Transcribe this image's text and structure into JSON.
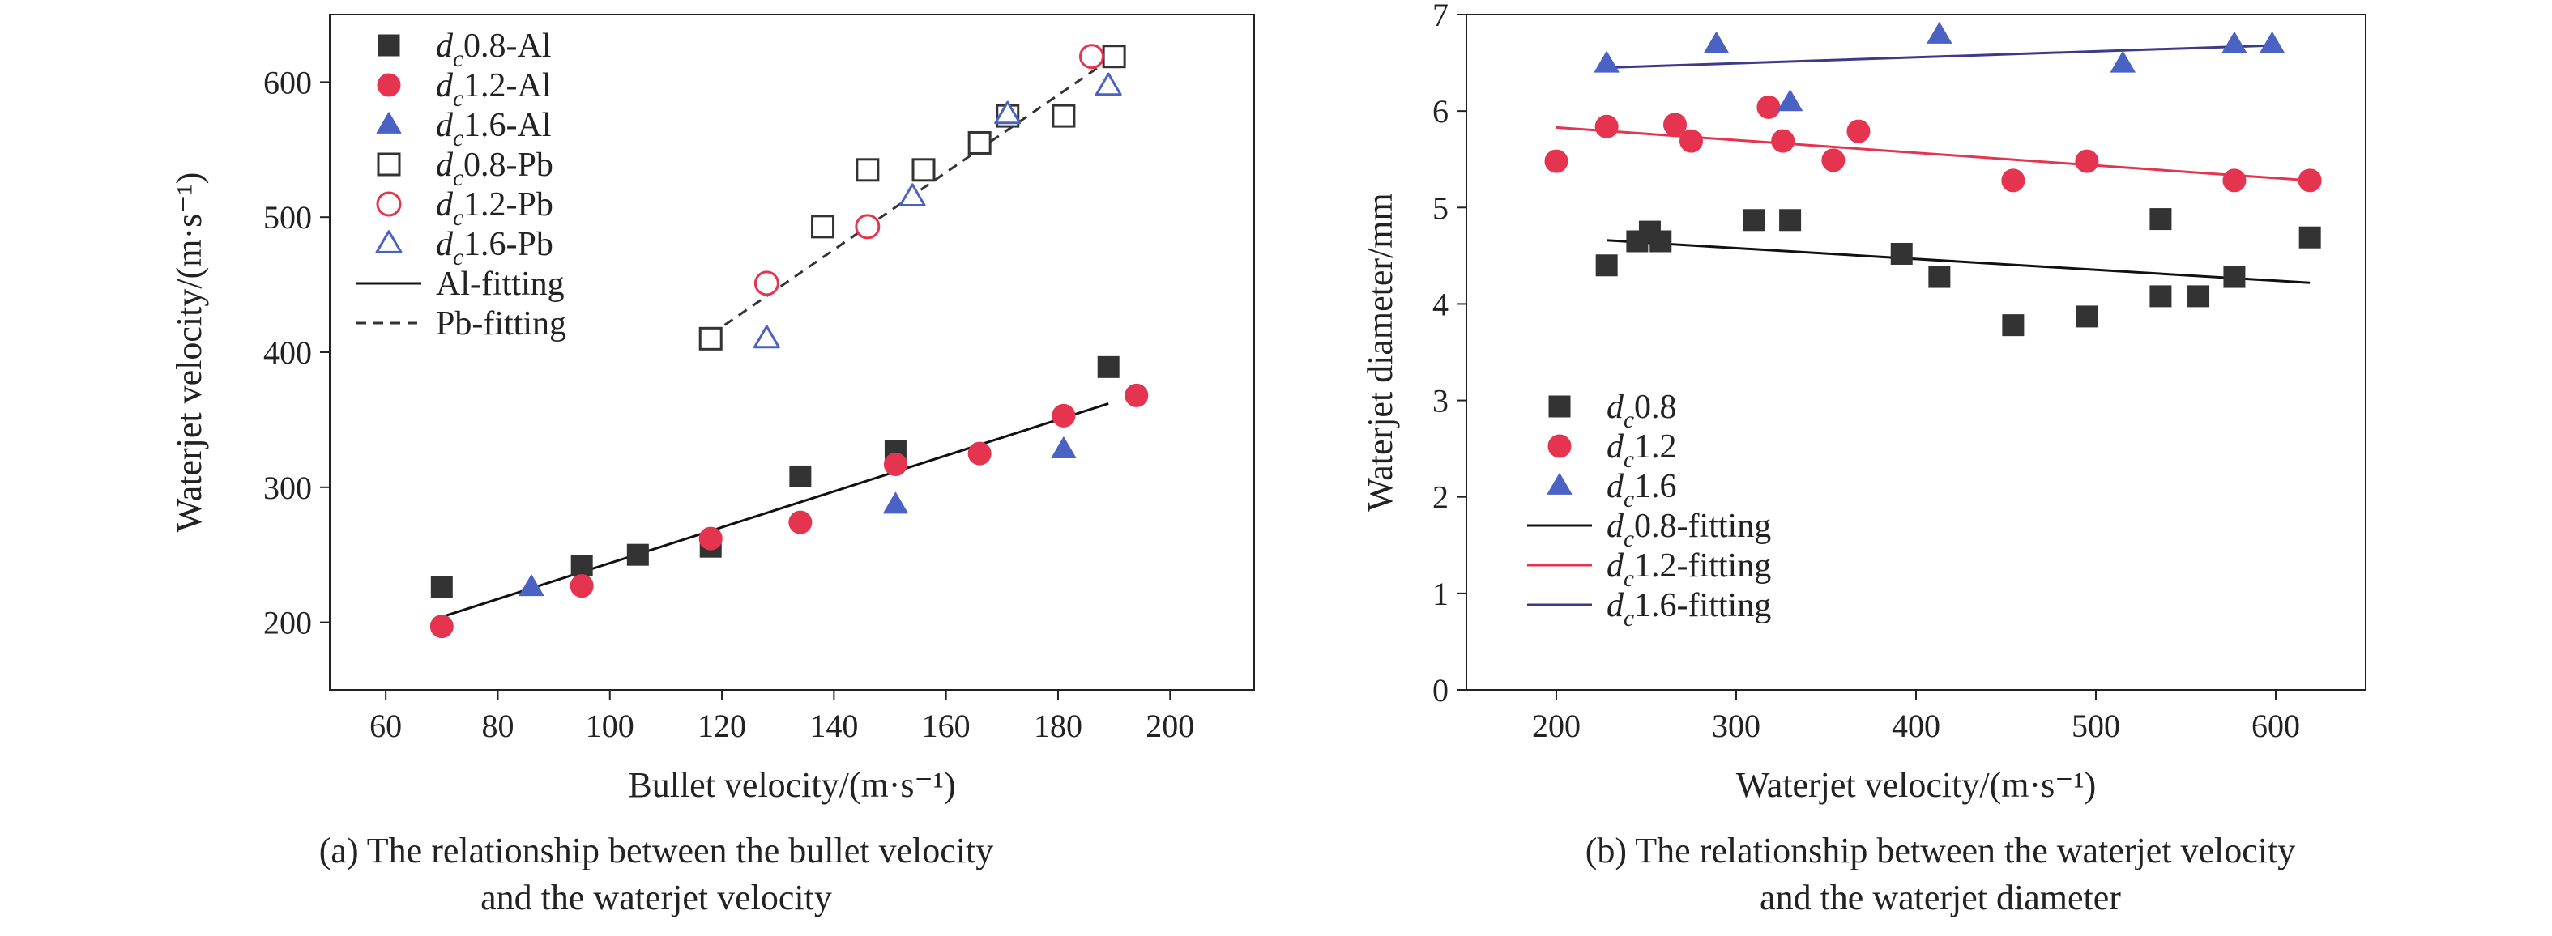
{
  "chart_data": [
    {
      "type": "scatter",
      "caption": [
        "(a) The relationship between the bullet velocity",
        "and the waterjet velocity"
      ],
      "xlabel": "Bullet velocity/(m·s⁻¹)",
      "ylabel": "Waterjet velocity/(m·s⁻¹)",
      "xlim": [
        50,
        215
      ],
      "ylim": [
        150,
        650
      ],
      "xticks": [
        60,
        80,
        100,
        120,
        140,
        160,
        180,
        200
      ],
      "yticks": [
        200,
        300,
        400,
        500,
        600
      ],
      "legend_position": "top-left",
      "series": [
        {
          "name": "dc0.8-Al",
          "sub": "c",
          "base": "d",
          "suffix": "0.8-Al",
          "marker": "square",
          "filled": true,
          "color": "#333333",
          "points": [
            [
              70,
              226
            ],
            [
              95,
              242
            ],
            [
              105,
              250
            ],
            [
              118,
              256
            ],
            [
              134,
              308
            ],
            [
              151,
              327
            ],
            [
              189,
              389
            ]
          ]
        },
        {
          "name": "dc1.2-Al",
          "sub": "c",
          "base": "d",
          "suffix": "1.2-Al",
          "marker": "circle",
          "filled": true,
          "color": "#e5344f",
          "points": [
            [
              70,
              197
            ],
            [
              95,
              227
            ],
            [
              118,
              262
            ],
            [
              134,
              274
            ],
            [
              151,
              317
            ],
            [
              166,
              325
            ],
            [
              181,
              353
            ],
            [
              194,
              368
            ]
          ]
        },
        {
          "name": "dc1.6-Al",
          "sub": "c",
          "base": "d",
          "suffix": "1.6-Al",
          "marker": "triangle",
          "filled": true,
          "color": "#4a62c4",
          "points": [
            [
              86,
              226
            ],
            [
              151,
              287
            ],
            [
              181,
              328
            ]
          ]
        },
        {
          "name": "dc0.8-Pb",
          "sub": "c",
          "base": "d",
          "suffix": "0.8-Pb",
          "marker": "square",
          "filled": false,
          "color": "#333333",
          "points": [
            [
              118,
              410
            ],
            [
              138,
              493
            ],
            [
              146,
              535
            ],
            [
              156,
              535
            ],
            [
              166,
              555
            ],
            [
              171,
              575
            ],
            [
              181,
              575
            ],
            [
              190,
              619
            ]
          ]
        },
        {
          "name": "dc1.2-Pb",
          "sub": "c",
          "base": "d",
          "suffix": "1.2-Pb",
          "marker": "circle",
          "filled": false,
          "color": "#e5344f",
          "points": [
            [
              128,
              451
            ],
            [
              146,
              493
            ],
            [
              186,
              619
            ]
          ]
        },
        {
          "name": "dc1.6-Pb",
          "sub": "c",
          "base": "d",
          "suffix": "1.6-Pb",
          "marker": "triangle",
          "filled": false,
          "color": "#4a62c4",
          "points": [
            [
              128,
              410
            ],
            [
              154,
              515
            ],
            [
              171,
              576
            ],
            [
              189,
              597
            ]
          ]
        }
      ],
      "fits": [
        {
          "name": "Al-fitting",
          "style": "solid",
          "color": "#111111",
          "from": [
            70,
            204
          ],
          "to": [
            189,
            362
          ]
        },
        {
          "name": "Pb-fitting",
          "style": "dashed",
          "color": "#333333",
          "from": [
            118,
            413
          ],
          "to": [
            190,
            619
          ]
        }
      ]
    },
    {
      "type": "scatter",
      "caption": [
        "(b) The relationship between the waterjet velocity",
        "and the waterjet diameter"
      ],
      "xlabel": "Waterjet velocity/(m·s⁻¹)",
      "ylabel": "Waterjet diameter/mm",
      "xlim": [
        150,
        650
      ],
      "ylim": [
        0,
        7
      ],
      "xticks": [
        200,
        300,
        400,
        500,
        600
      ],
      "yticks": [
        0,
        1,
        2,
        3,
        4,
        5,
        6,
        7
      ],
      "legend_position": "bottom-left",
      "series": [
        {
          "name": "dc0.8",
          "sub": "c",
          "base": "d",
          "suffix": "0.8",
          "marker": "square",
          "filled": true,
          "color": "#333333",
          "points": [
            [
              228,
              4.4
            ],
            [
              245,
              4.65
            ],
            [
              252,
              4.75
            ],
            [
              258,
              4.65
            ],
            [
              310,
              4.87
            ],
            [
              330,
              4.87
            ],
            [
              392,
              4.52
            ],
            [
              413,
              4.28
            ],
            [
              454,
              3.78
            ],
            [
              495,
              3.87
            ],
            [
              536,
              4.88
            ],
            [
              536,
              4.08
            ],
            [
              557,
              4.08
            ],
            [
              577,
              4.28
            ],
            [
              619,
              4.69
            ]
          ]
        },
        {
          "name": "dc1.2",
          "sub": "c",
          "base": "d",
          "suffix": "1.2",
          "marker": "circle",
          "filled": true,
          "color": "#e5344f",
          "points": [
            [
              200,
              5.48
            ],
            [
              228,
              5.84
            ],
            [
              266,
              5.86
            ],
            [
              275,
              5.69
            ],
            [
              318,
              6.04
            ],
            [
              326,
              5.69
            ],
            [
              354,
              5.49
            ],
            [
              368,
              5.79
            ],
            [
              454,
              5.28
            ],
            [
              495,
              5.48
            ],
            [
              577,
              5.28
            ],
            [
              619,
              5.28
            ]
          ]
        },
        {
          "name": "dc1.6",
          "sub": "c",
          "base": "d",
          "suffix": "1.6",
          "marker": "triangle",
          "filled": true,
          "color": "#4a62c4",
          "points": [
            [
              228,
              6.49
            ],
            [
              289,
              6.69
            ],
            [
              330,
              6.09
            ],
            [
              413,
              6.79
            ],
            [
              515,
              6.49
            ],
            [
              577,
              6.69
            ],
            [
              598,
              6.69
            ]
          ]
        }
      ],
      "fits": [
        {
          "name": "dc0.8-fitting",
          "sub": "c",
          "base": "d",
          "suffix": "0.8-fitting",
          "style": "solid",
          "color": "#111111",
          "from": [
            228,
            4.66
          ],
          "to": [
            619,
            4.22
          ]
        },
        {
          "name": "dc1.2-fitting",
          "sub": "c",
          "base": "d",
          "suffix": "1.2-fitting",
          "style": "solid",
          "color": "#e5344f",
          "from": [
            200,
            5.83
          ],
          "to": [
            619,
            5.28
          ]
        },
        {
          "name": "dc1.6-fitting",
          "sub": "c",
          "base": "d",
          "suffix": "1.6-fitting",
          "style": "solid",
          "color": "#3c3a8a",
          "from": [
            228,
            6.45
          ],
          "to": [
            598,
            6.68
          ]
        }
      ]
    }
  ]
}
